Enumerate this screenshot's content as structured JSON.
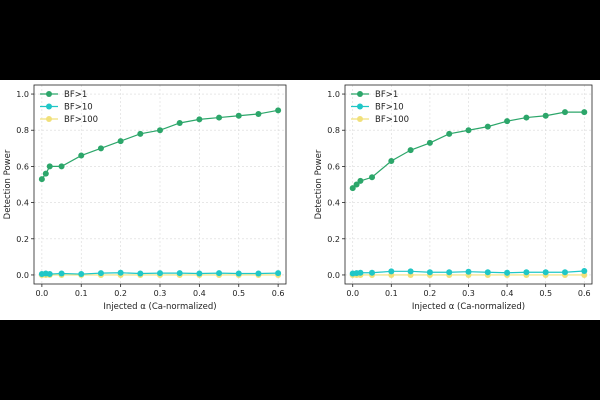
{
  "chart_data": [
    {
      "type": "line",
      "xlabel": "Injected α (Ca-normalized)",
      "ylabel": "Detection Power",
      "xlim": [
        -0.02,
        0.62
      ],
      "ylim": [
        -0.05,
        1.05
      ],
      "xticks": [
        "0.0",
        "0.1",
        "0.2",
        "0.3",
        "0.4",
        "0.5",
        "0.6"
      ],
      "yticks": [
        "0.0",
        "0.2",
        "0.4",
        "0.6",
        "0.8",
        "1.0"
      ],
      "grid": true,
      "legend_position": "top-left",
      "x": [
        0.0,
        0.01,
        0.02,
        0.05,
        0.1,
        0.15,
        0.2,
        0.25,
        0.3,
        0.35,
        0.4,
        0.45,
        0.5,
        0.55,
        0.6
      ],
      "series": [
        {
          "name": "BF>1",
          "color": "#2ca66a",
          "values": [
            0.53,
            0.56,
            0.6,
            0.6,
            0.66,
            0.7,
            0.74,
            0.78,
            0.8,
            0.84,
            0.86,
            0.87,
            0.88,
            0.89,
            0.91
          ]
        },
        {
          "name": "BF>10",
          "color": "#1fc7c7",
          "values": [
            0.005,
            0.008,
            0.005,
            0.008,
            0.005,
            0.01,
            0.012,
            0.008,
            0.01,
            0.01,
            0.008,
            0.01,
            0.008,
            0.008,
            0.01
          ]
        },
        {
          "name": "BF>100",
          "color": "#f1e07a",
          "values": [
            0.0,
            0.0,
            0.0,
            0.0,
            0.0,
            0.0,
            0.0,
            0.0,
            0.0,
            0.0,
            0.0,
            0.0,
            0.0,
            0.0,
            0.0
          ]
        }
      ]
    },
    {
      "type": "line",
      "xlabel": "Injected α (Ca-normalized)",
      "ylabel": "Detection Power",
      "xlim": [
        -0.02,
        0.62
      ],
      "ylim": [
        -0.05,
        1.05
      ],
      "xticks": [
        "0.0",
        "0.1",
        "0.2",
        "0.3",
        "0.4",
        "0.5",
        "0.6"
      ],
      "yticks": [
        "0.0",
        "0.2",
        "0.4",
        "0.6",
        "0.8",
        "1.0"
      ],
      "grid": true,
      "legend_position": "top-left",
      "x": [
        0.0,
        0.01,
        0.02,
        0.05,
        0.1,
        0.15,
        0.2,
        0.25,
        0.3,
        0.35,
        0.4,
        0.45,
        0.5,
        0.55,
        0.6
      ],
      "series": [
        {
          "name": "BF>1",
          "color": "#2ca66a",
          "values": [
            0.48,
            0.5,
            0.52,
            0.54,
            0.63,
            0.69,
            0.73,
            0.78,
            0.8,
            0.82,
            0.85,
            0.87,
            0.88,
            0.9,
            0.9
          ]
        },
        {
          "name": "BF>10",
          "color": "#1fc7c7",
          "values": [
            0.008,
            0.01,
            0.012,
            0.012,
            0.02,
            0.02,
            0.015,
            0.015,
            0.018,
            0.015,
            0.012,
            0.015,
            0.015,
            0.015,
            0.022
          ]
        },
        {
          "name": "BF>100",
          "color": "#f1e07a",
          "values": [
            0.0,
            0.0,
            0.0,
            0.0,
            0.0,
            0.0,
            0.0,
            0.0,
            0.0,
            0.0,
            0.0,
            0.0,
            0.0,
            0.0,
            0.0
          ]
        }
      ]
    }
  ]
}
